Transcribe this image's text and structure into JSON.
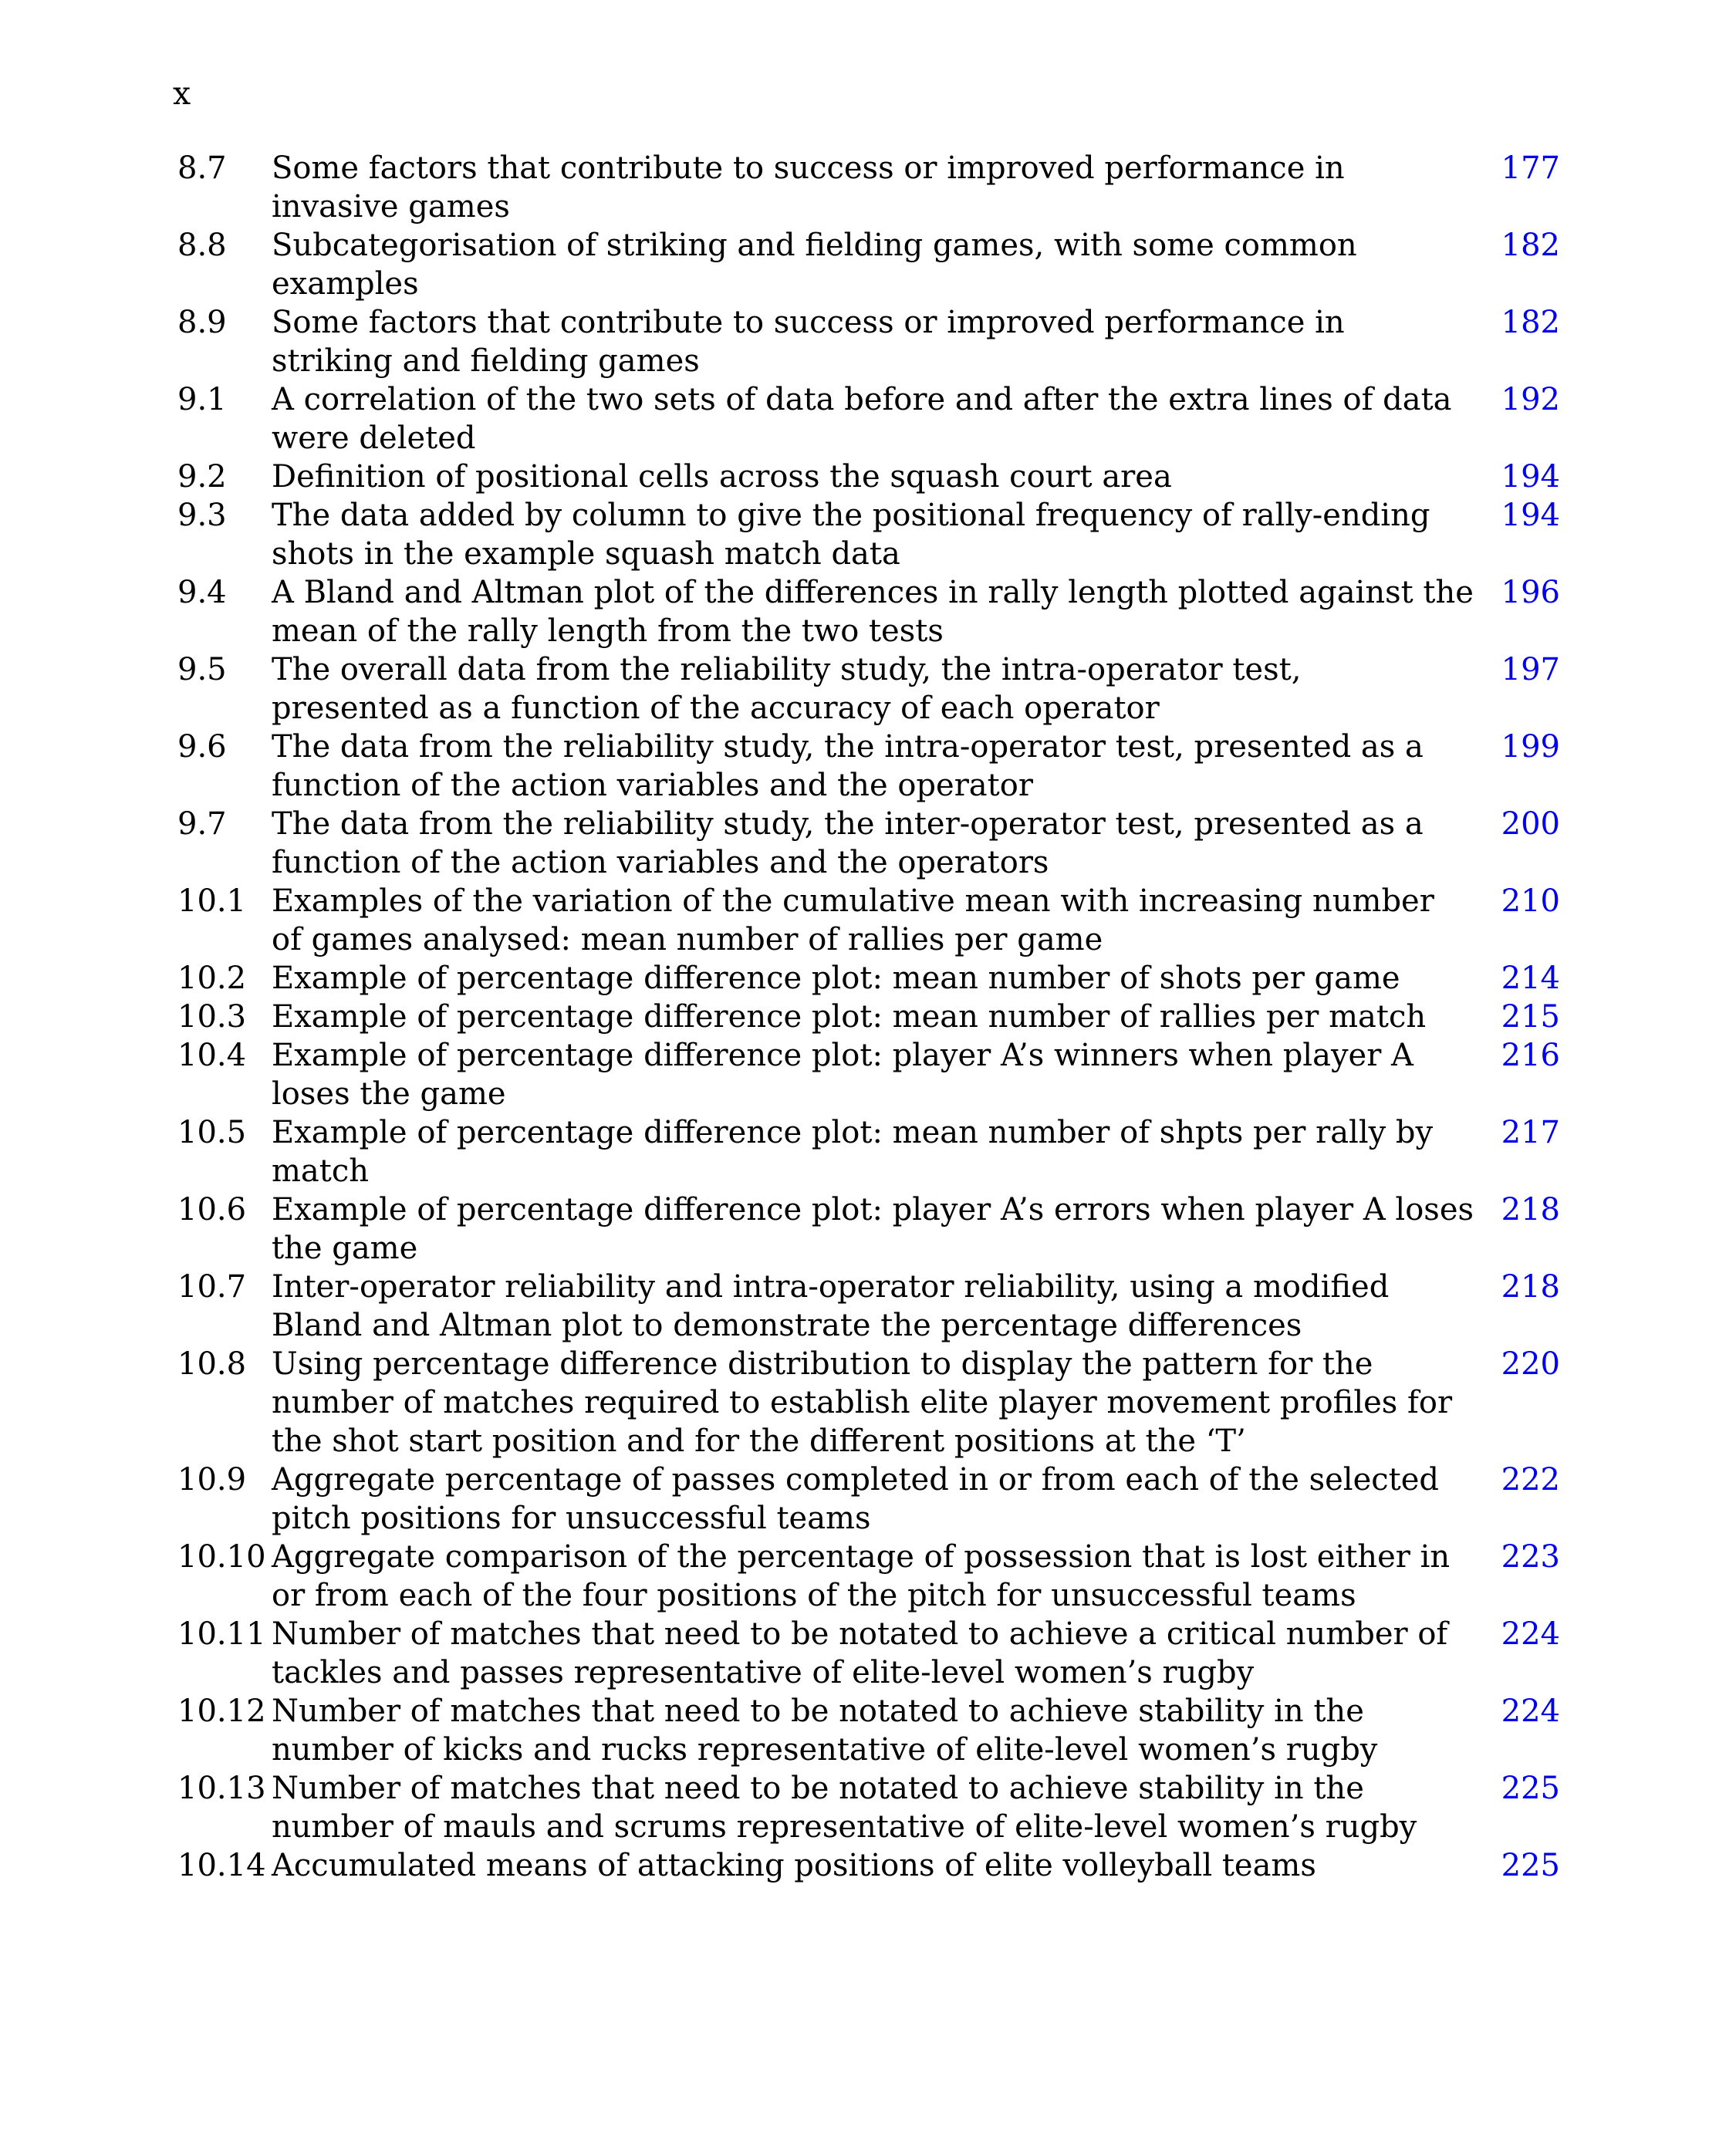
{
  "page": {
    "corner_label": "x"
  },
  "colors": {
    "page_number_link_blue": "#0000EE",
    "body_text": "#000000",
    "background": "#FFFFFF"
  },
  "list_of_figures": {
    "entries": [
      {
        "label": "8.7",
        "lines": [
          "Some factors that contribute to success or improved performance in",
          "invasive games"
        ],
        "page": "177"
      },
      {
        "label": "8.8",
        "lines": [
          "Subcategorisation of striking and fielding games, with some common",
          "examples"
        ],
        "page": "182"
      },
      {
        "label": "8.9",
        "lines": [
          "Some factors that contribute to success or improved performance in",
          "striking and fielding games"
        ],
        "page": "182"
      },
      {
        "label": "9.1",
        "lines": [
          "A correlation of the two sets of data before and after the extra lines of data",
          "were deleted"
        ],
        "page": "192"
      },
      {
        "label": "9.2",
        "lines": [
          "Definition of positional cells across the squash court area"
        ],
        "page": "194"
      },
      {
        "label": "9.3",
        "lines": [
          "The data added by column to give the positional frequency of rally-ending",
          "shots in the example squash match data"
        ],
        "page": "194"
      },
      {
        "label": "9.4",
        "lines": [
          "A Bland and Altman plot of the differences in rally length plotted against the",
          "mean of the rally length from the two tests"
        ],
        "page": "196"
      },
      {
        "label": "9.5",
        "lines": [
          "The overall data from the reliability study, the intra-operator test,",
          "presented as a function of the accuracy of each operator"
        ],
        "page": "197"
      },
      {
        "label": "9.6",
        "lines": [
          "The data from the reliability study, the intra-operator test, presented as a",
          "function of the action variables and the operator"
        ],
        "page": "199"
      },
      {
        "label": "9.7",
        "lines": [
          "The data from the reliability study, the inter-operator test, presented as a",
          "function of the action variables and the operators"
        ],
        "page": "200"
      },
      {
        "label": "10.1",
        "lines": [
          "Examples of the variation of the cumulative mean with increasing number",
          "of games analysed: mean number of rallies per game"
        ],
        "page": "210"
      },
      {
        "label": "10.2",
        "lines": [
          "Example of percentage difference plot: mean number of shots per game"
        ],
        "page": "214"
      },
      {
        "label": "10.3",
        "lines": [
          "Example of percentage difference plot: mean number of rallies per match"
        ],
        "page": "215"
      },
      {
        "label": "10.4",
        "lines": [
          "Example of percentage difference plot: player A’s winners when player A",
          "loses the game"
        ],
        "page": "216"
      },
      {
        "label": "10.5",
        "lines": [
          "Example of percentage difference plot: mean number of shpts per rally by",
          "match"
        ],
        "page": "217"
      },
      {
        "label": "10.6",
        "lines": [
          "Example of percentage difference plot: player A’s errors when player A loses",
          "the game"
        ],
        "page": "218"
      },
      {
        "label": "10.7",
        "lines": [
          "Inter-operator reliability and intra-operator reliability, using a modified",
          "Bland and Altman plot to demonstrate the percentage differences"
        ],
        "page": "218"
      },
      {
        "label": "10.8",
        "lines": [
          "Using percentage difference distribution to display the pattern for the",
          "number of matches required to establish elite player movement profiles for",
          "the shot start position and for the different positions at the ‘T’"
        ],
        "page": "220"
      },
      {
        "label": "10.9",
        "lines": [
          "Aggregate percentage of passes completed in or from each of the selected",
          "pitch positions for unsuccessful teams"
        ],
        "page": "222"
      },
      {
        "label": "10.10",
        "lines": [
          "Aggregate comparison of the percentage of possession that is lost either in",
          "or from each of the four positions of the pitch for unsuccessful teams"
        ],
        "page": "223"
      },
      {
        "label": "10.11",
        "lines": [
          "Number of matches that need to be notated to achieve a critical number of",
          "tackles and passes representative of elite-level women’s rugby"
        ],
        "page": "224"
      },
      {
        "label": "10.12",
        "lines": [
          "Number of matches that need to be notated to achieve stability in the",
          "number of kicks and rucks representative of elite-level women’s rugby"
        ],
        "page": "224"
      },
      {
        "label": "10.13",
        "lines": [
          "Number of matches that need to be notated to achieve stability in the",
          "number of mauls and scrums representative of elite-level women’s rugby"
        ],
        "page": "225"
      },
      {
        "label": "10.14",
        "lines": [
          "Accumulated means of attacking positions of elite volleyball teams"
        ],
        "page": "225"
      }
    ]
  }
}
